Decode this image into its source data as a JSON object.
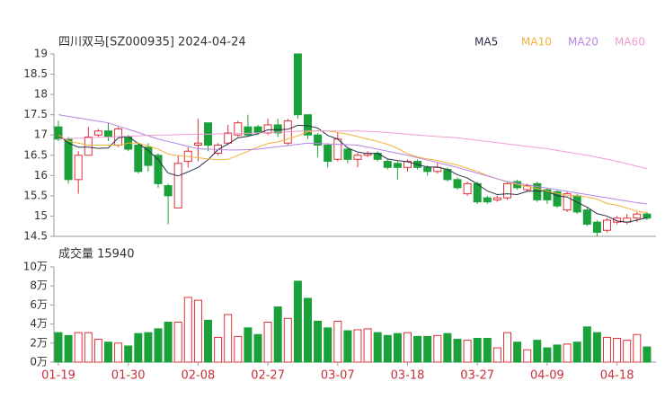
{
  "chart_data": [
    {
      "type": "candlestick",
      "title": "四川双马[SZ000935] 2024-04-24",
      "up_color": "#e0303a",
      "down_color": "#1ba13a",
      "ylim": [
        14.5,
        19
      ],
      "yticks": [
        19,
        18.5,
        18,
        17.5,
        17,
        16.5,
        16,
        15.5,
        15,
        14.5
      ],
      "open": [
        17.2,
        16.9,
        15.9,
        16.5,
        17.0,
        17.1,
        16.75,
        16.95,
        16.75,
        16.7,
        16.5,
        15.75,
        15.2,
        16.35,
        16.75,
        17.3,
        16.55,
        16.8,
        17.0,
        17.2,
        17.2,
        17.05,
        17.25,
        16.8,
        19.0,
        17.5,
        17.0,
        16.75,
        16.4,
        16.65,
        16.4,
        16.5,
        16.55,
        16.35,
        16.3,
        16.2,
        16.35,
        16.2,
        16.1,
        16.15,
        15.9,
        15.55,
        15.8,
        15.45,
        15.4,
        15.45,
        15.85,
        15.65,
        15.8,
        15.65,
        15.6,
        15.15,
        15.5,
        15.15,
        14.85,
        14.65,
        14.85,
        14.85,
        14.95,
        15.05
      ],
      "high": [
        17.35,
        16.95,
        16.6,
        17.2,
        17.15,
        17.3,
        17.2,
        17.0,
        16.8,
        16.8,
        16.55,
        15.8,
        16.5,
        16.7,
        17.4,
        17.3,
        16.8,
        17.25,
        17.35,
        17.5,
        17.25,
        17.4,
        17.4,
        17.4,
        19.0,
        17.5,
        17.05,
        16.8,
        17.05,
        16.7,
        16.55,
        16.6,
        16.6,
        16.4,
        16.35,
        16.4,
        16.4,
        16.25,
        16.3,
        16.2,
        15.95,
        15.85,
        15.85,
        15.5,
        15.5,
        15.85,
        15.9,
        15.8,
        15.85,
        15.7,
        15.65,
        15.6,
        15.55,
        15.2,
        14.9,
        14.95,
        15.0,
        15.05,
        15.1,
        15.1
      ],
      "low": [
        16.85,
        15.8,
        15.55,
        16.5,
        16.95,
        16.85,
        16.7,
        16.6,
        16.05,
        16.1,
        15.7,
        14.8,
        15.2,
        16.2,
        16.35,
        16.6,
        16.5,
        16.75,
        16.95,
        16.95,
        17.0,
        17.0,
        16.95,
        16.75,
        17.4,
        16.9,
        16.45,
        16.2,
        16.35,
        16.3,
        16.2,
        16.45,
        16.35,
        16.15,
        15.9,
        16.1,
        16.15,
        16.0,
        16.05,
        15.85,
        15.65,
        15.5,
        15.3,
        15.3,
        15.35,
        15.4,
        15.65,
        15.6,
        15.35,
        15.3,
        15.2,
        15.1,
        15.05,
        14.75,
        14.5,
        14.6,
        14.8,
        14.8,
        14.85,
        14.9
      ],
      "close": [
        16.9,
        15.9,
        16.5,
        16.95,
        17.1,
        16.95,
        17.15,
        16.65,
        16.1,
        16.25,
        15.8,
        15.5,
        16.3,
        16.6,
        16.8,
        16.75,
        16.75,
        17.05,
        17.3,
        17.0,
        17.05,
        17.25,
        17.05,
        17.35,
        17.5,
        17.0,
        16.75,
        16.35,
        16.9,
        16.4,
        16.5,
        16.55,
        16.4,
        16.2,
        16.2,
        16.35,
        16.2,
        16.1,
        16.2,
        15.9,
        15.7,
        15.8,
        15.35,
        15.35,
        15.45,
        15.8,
        15.7,
        15.75,
        15.4,
        15.4,
        15.25,
        15.55,
        15.1,
        14.8,
        14.6,
        14.9,
        14.95,
        14.95,
        15.05,
        14.95
      ],
      "series": [
        {
          "name": "MA5",
          "color": "#2c2f4a",
          "values": [
            17.0,
            16.8,
            16.7,
            16.7,
            16.67,
            16.68,
            16.93,
            16.96,
            16.79,
            16.62,
            16.39,
            16.06,
            15.99,
            16.09,
            16.2,
            16.39,
            16.64,
            16.78,
            16.93,
            16.97,
            17.03,
            17.13,
            17.13,
            17.14,
            17.24,
            17.23,
            17.17,
            16.99,
            16.9,
            16.68,
            16.58,
            16.54,
            16.55,
            16.41,
            16.37,
            16.34,
            16.27,
            16.21,
            16.21,
            16.15,
            16.02,
            15.94,
            15.79,
            15.62,
            15.53,
            15.55,
            15.53,
            15.61,
            15.62,
            15.61,
            15.5,
            15.47,
            15.34,
            15.22,
            15.06,
            15.0,
            14.88,
            14.85,
            14.9,
            14.96
          ]
        },
        {
          "name": "MA10",
          "color": "#f4b13a",
          "values": [
            17.0,
            16.85,
            16.8,
            16.75,
            16.75,
            16.75,
            16.74,
            16.8,
            16.8,
            16.73,
            16.65,
            16.53,
            16.49,
            16.47,
            16.44,
            16.41,
            16.39,
            16.4,
            16.5,
            16.6,
            16.7,
            16.79,
            16.83,
            16.9,
            16.98,
            17.08,
            17.1,
            17.1,
            17.06,
            17.02,
            16.96,
            16.9,
            16.84,
            16.77,
            16.67,
            16.54,
            16.46,
            16.41,
            16.37,
            16.31,
            16.26,
            16.18,
            16.1,
            16.0,
            15.92,
            15.84,
            15.78,
            15.73,
            15.68,
            15.61,
            15.56,
            15.51,
            15.5,
            15.47,
            15.42,
            15.31,
            15.27,
            15.2,
            15.12,
            15.08
          ]
        },
        {
          "name": "MA20",
          "color": "#b784e3",
          "values": [
            17.5,
            17.46,
            17.42,
            17.38,
            17.34,
            17.3,
            17.22,
            17.14,
            17.06,
            16.98,
            16.9,
            16.84,
            16.78,
            16.72,
            16.66,
            16.65,
            16.64,
            16.63,
            16.63,
            16.64,
            16.65,
            16.68,
            16.71,
            16.74,
            16.77,
            16.8,
            16.79,
            16.78,
            16.77,
            16.76,
            16.75,
            16.7,
            16.65,
            16.6,
            16.55,
            16.5,
            16.44,
            16.38,
            16.32,
            16.26,
            16.2,
            16.13,
            16.06,
            15.99,
            15.92,
            15.85,
            15.81,
            15.77,
            15.73,
            15.69,
            15.65,
            15.61,
            15.57,
            15.53,
            15.49,
            15.45,
            15.41,
            15.37,
            15.33,
            15.3
          ]
        },
        {
          "name": "MA60",
          "color": "#f29bd2",
          "values": [
            16.9,
            16.91,
            16.92,
            16.93,
            16.94,
            16.95,
            16.96,
            16.97,
            16.98,
            16.99,
            17.0,
            17.0,
            17.01,
            17.01,
            17.02,
            17.02,
            17.03,
            17.03,
            17.04,
            17.04,
            17.05,
            17.06,
            17.07,
            17.08,
            17.09,
            17.1,
            17.1,
            17.1,
            17.1,
            17.1,
            17.1,
            17.09,
            17.08,
            17.06,
            17.04,
            17.02,
            17.0,
            16.98,
            16.96,
            16.95,
            16.93,
            16.9,
            16.87,
            16.84,
            16.81,
            16.78,
            16.75,
            16.72,
            16.69,
            16.66,
            16.62,
            16.58,
            16.54,
            16.5,
            16.45,
            16.4,
            16.35,
            16.29,
            16.23,
            16.17
          ]
        }
      ]
    },
    {
      "type": "bar",
      "title": "成交量 15940",
      "categories": [
        "01-19",
        null,
        null,
        null,
        null,
        null,
        null,
        "01-30",
        null,
        null,
        null,
        null,
        null,
        null,
        "02-08",
        null,
        null,
        null,
        null,
        null,
        null,
        "02-27",
        null,
        null,
        null,
        null,
        null,
        null,
        "03-07",
        null,
        null,
        null,
        null,
        null,
        null,
        "03-18",
        null,
        null,
        null,
        null,
        null,
        null,
        "03-27",
        null,
        null,
        null,
        null,
        null,
        null,
        "04-09",
        null,
        null,
        null,
        null,
        null,
        null,
        "04-18",
        null,
        null,
        null
      ],
      "ylim": [
        0,
        10
      ],
      "yticks": [
        {
          "value": 10,
          "label": "10万"
        },
        {
          "value": 8,
          "label": "8万"
        },
        {
          "value": 6,
          "label": "6万"
        },
        {
          "value": 4,
          "label": "4万"
        },
        {
          "value": 2,
          "label": "2万"
        },
        {
          "value": 0,
          "label": "0万"
        }
      ],
      "values": [
        3.1,
        2.8,
        3.1,
        3.1,
        2.4,
        2.1,
        2.0,
        1.7,
        3.0,
        3.1,
        3.5,
        4.2,
        4.2,
        6.8,
        6.5,
        4.4,
        2.6,
        5.0,
        2.7,
        3.6,
        2.9,
        4.2,
        5.8,
        4.6,
        8.5,
        6.7,
        4.3,
        3.6,
        4.3,
        3.3,
        3.4,
        3.5,
        3.1,
        2.8,
        3.0,
        3.1,
        2.7,
        2.7,
        2.8,
        3.0,
        2.4,
        2.3,
        2.5,
        2.5,
        1.5,
        3.1,
        2.1,
        1.3,
        2.3,
        1.5,
        1.8,
        1.9,
        2.1,
        3.7,
        3.1,
        2.6,
        2.5,
        2.3,
        2.9,
        1.594
      ]
    }
  ]
}
